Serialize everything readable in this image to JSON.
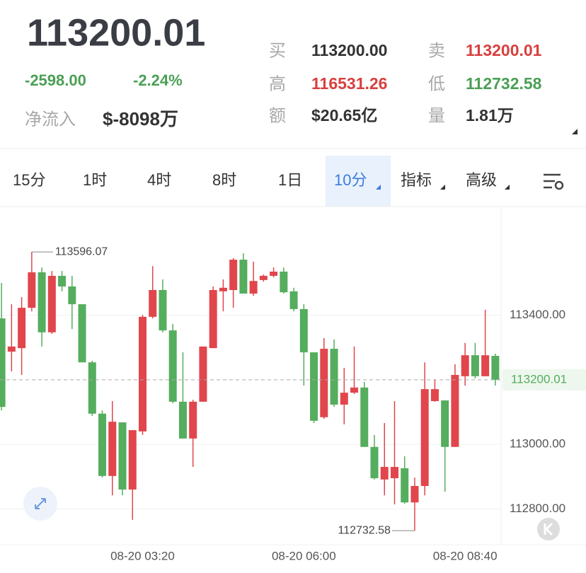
{
  "header": {
    "price": "113200.01",
    "change": "-2598.00",
    "change_pct": "-2.24%",
    "netflow_label": "净流入",
    "netflow": "$-8098万",
    "stats": [
      {
        "label": "买",
        "value": "113200.00"
      },
      {
        "label": "卖",
        "value": "113200.01"
      },
      {
        "label": "高",
        "value": "116531.26"
      },
      {
        "label": "低",
        "value": "112732.58"
      },
      {
        "label": "额",
        "value": "$20.65亿"
      },
      {
        "label": "量",
        "value": "1.81万"
      }
    ]
  },
  "tabs": [
    "15分",
    "1时",
    "4时",
    "8时",
    "1日",
    "10分",
    "指标",
    "高级"
  ],
  "chart_data": {
    "type": "candlestick",
    "categories": [
      null,
      null,
      null,
      null,
      null,
      null,
      null,
      null,
      null,
      null,
      null,
      null,
      null,
      null,
      "08-20 03:20",
      null,
      null,
      null,
      null,
      null,
      null,
      null,
      null,
      null,
      null,
      null,
      null,
      null,
      null,
      null,
      "08-20 06:00",
      null,
      null,
      null,
      null,
      null,
      null,
      null,
      null,
      null,
      null,
      null,
      null,
      null,
      null,
      null,
      "08-20 08:40",
      null,
      null,
      null
    ],
    "open": [
      113390,
      113287,
      113298,
      113423,
      113533,
      113347,
      113522,
      113489,
      113434,
      113254,
      113095,
      112902,
      113068,
      112860,
      113040,
      113395,
      113478,
      113353,
      113132,
      113018,
      113132,
      113298,
      113474,
      113478,
      113572,
      113467,
      113509,
      113522,
      113535,
      113474,
      113419,
      113285,
      113084,
      113296,
      113123,
      113160,
      113176,
      112992,
      112891,
      112895,
      112926,
      112820,
      112871,
      113134,
      113136,
      112992,
      113211,
      113276,
      113211,
      113274
    ],
    "high": [
      113500,
      113434,
      113456,
      113596.07,
      113548,
      113537,
      113537,
      113522,
      113434,
      113259,
      113105,
      113134,
      113068,
      113044,
      113401,
      113552,
      113511,
      113373,
      113285,
      113138,
      113303,
      113489,
      113511,
      113577,
      113592,
      113566,
      113526,
      113548,
      113548,
      113485,
      113434,
      113285,
      113329,
      113325,
      113237,
      113303,
      113193,
      113029,
      113066,
      113134,
      112963,
      112897,
      113254,
      113200,
      113136,
      113248,
      113314,
      113314,
      113417,
      113281
    ],
    "low": [
      113105,
      113226,
      113215,
      113412,
      113303,
      113342,
      113474,
      113357,
      113254,
      113088,
      112897,
      112842,
      112842,
      112766,
      113029,
      113390,
      113347,
      113127,
      113018,
      112930,
      113132,
      113298,
      113412,
      113423,
      113467,
      113460,
      113504,
      113517,
      113467,
      113412,
      113182,
      113066,
      113079,
      113116,
      113062,
      113156,
      112992,
      112891,
      112842,
      112814,
      112816,
      112732.58,
      112842,
      113132,
      112853,
      112992,
      113182,
      113204,
      113211,
      113182
    ],
    "close": [
      113116,
      113303,
      113423,
      113533,
      113347,
      113522,
      113489,
      113434,
      113254,
      113095,
      112902,
      113070,
      112860,
      113044,
      113395,
      113478,
      113353,
      113132,
      113018,
      113132,
      113303,
      113478,
      113485,
      113572,
      113467,
      113506,
      113522,
      113535,
      113471,
      113419,
      113285,
      113073,
      113296,
      113123,
      113160,
      113176,
      112992,
      112895,
      112930,
      112930,
      112820,
      112871,
      113171,
      113171,
      112992,
      113215,
      113276,
      113211,
      113276,
      113200.01
    ],
    "up_color": "#e0464c",
    "down_color": "#55ad5e",
    "ylim": [
      112700,
      113730
    ],
    "yticks": [
      {
        "value": 112800,
        "label": "112800.00"
      },
      {
        "value": 113000,
        "label": "113000.00"
      },
      {
        "value": 113400,
        "label": "113400.00"
      }
    ],
    "grid": true
  }
}
